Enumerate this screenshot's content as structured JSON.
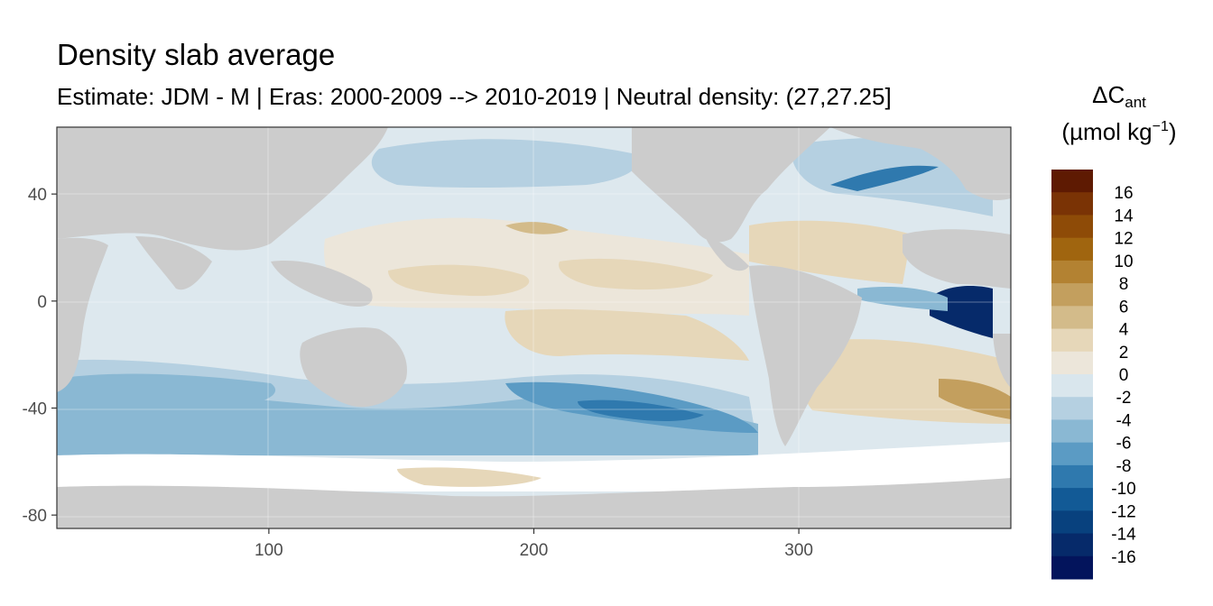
{
  "chart_data": {
    "type": "heatmap",
    "title": "Density slab average",
    "subtitle": "Estimate: JDM - M | Eras: 2000-2009 --> 2010-2019 | Neutral density: (27,27.25]",
    "xlabel": "",
    "ylabel": "",
    "xlim": [
      20,
      380
    ],
    "ylim": [
      -85,
      65
    ],
    "x_ticks": [
      "100",
      "200",
      "300"
    ],
    "y_ticks": [
      "40",
      "0",
      "-40",
      "-80"
    ],
    "grid": true,
    "legend": {
      "position": "right",
      "title_main": "ΔC",
      "title_sub": "ant",
      "unit_pre": "(µmol kg",
      "unit_sup": "−1",
      "unit_post": ")",
      "labels": [
        "16",
        "14",
        "12",
        "10",
        "8",
        "6",
        "4",
        "2",
        "0",
        "-2",
        "-4",
        "-6",
        "-8",
        "-10",
        "-12",
        "-14",
        "-16"
      ],
      "colors": [
        "#5e1a02",
        "#7a3305",
        "#8e4b07",
        "#a0650f",
        "#b38232",
        "#c39f5e",
        "#d3bb8a",
        "#e6d7b9",
        "#ece6da",
        "#d9e6ed",
        "#b5d0e1",
        "#8ab8d3",
        "#5b9bc4",
        "#2f79ae",
        "#125a96",
        "#08417e",
        "#062a6a",
        "#03145c"
      ]
    },
    "colors": {
      "land": "#cccccc",
      "no_data": "#ffffff",
      "panel_border": "#333333"
    }
  }
}
